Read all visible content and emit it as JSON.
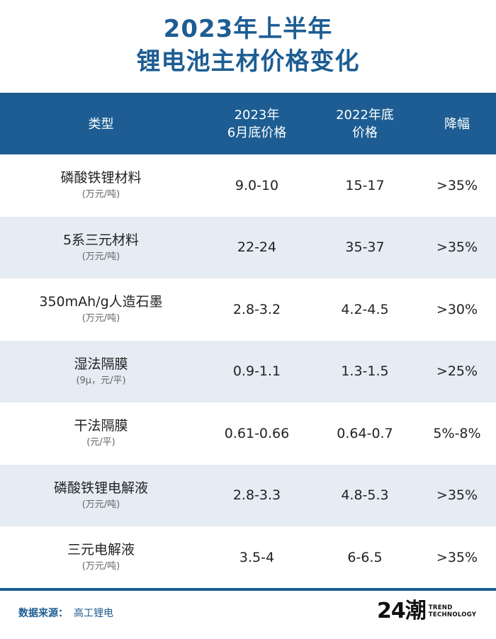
{
  "title": {
    "line1": "2023年上半年",
    "line2": "锂电池主材价格变化"
  },
  "table": {
    "headers": [
      "类型",
      "2023年\n6月底价格",
      "2022年底\n价格",
      "降幅"
    ],
    "rows": [
      {
        "type": "磷酸铁锂材料",
        "unit": "(万元/吨)",
        "price_2023": "9.0-10",
        "price_2022": "15-17",
        "drop": ">35%"
      },
      {
        "type": "5系三元材料",
        "unit": "(万元/吨)",
        "price_2023": "22-24",
        "price_2022": "35-37",
        "drop": ">35%"
      },
      {
        "type": "350mAh/g人造石墨",
        "unit": "(万元/吨)",
        "price_2023": "2.8-3.2",
        "price_2022": "4.2-4.5",
        "drop": ">30%"
      },
      {
        "type": "湿法隔膜",
        "unit": "(9μ，元/平)",
        "price_2023": "0.9-1.1",
        "price_2022": "1.3-1.5",
        "drop": ">25%"
      },
      {
        "type": "干法隔膜",
        "unit": "(元/平)",
        "price_2023": "0.61-0.66",
        "price_2022": "0.64-0.7",
        "drop": "5%-8%"
      },
      {
        "type": "磷酸铁锂电解液",
        "unit": "(万元/吨)",
        "price_2023": "2.8-3.3",
        "price_2022": "4.8-5.3",
        "drop": ">35%"
      },
      {
        "type": "三元电解液",
        "unit": "(万元/吨)",
        "price_2023": "3.5-4",
        "price_2022": "6-6.5",
        "drop": ">35%"
      }
    ]
  },
  "footer": {
    "source_label": "数据来源：",
    "source_value": "高工锂电",
    "logo_mark": "24潮",
    "logo_line1": "TREND",
    "logo_line2": "TECHNOLOGY"
  },
  "colors": {
    "brand_blue": "#1d5d93",
    "row_alt": "#e6ecf3"
  }
}
